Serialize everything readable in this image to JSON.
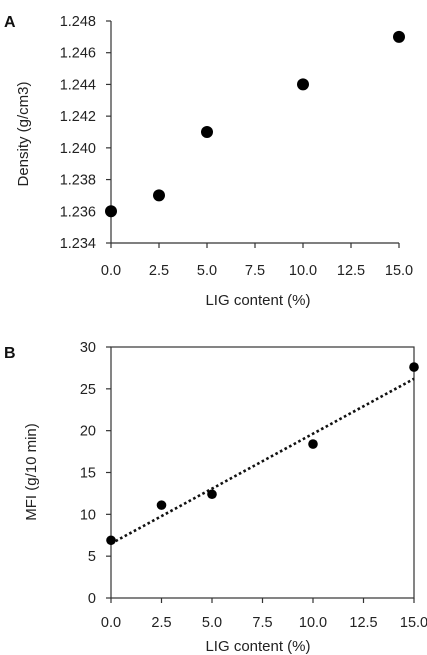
{
  "chart_data": [
    {
      "panel": "A",
      "type": "scatter",
      "xlabel": "LIG content (%)",
      "ylabel": "Density (g/cm3)",
      "xlim": [
        0,
        15
      ],
      "ylim": [
        1.234,
        1.248
      ],
      "xticks": [
        "0.0",
        "2.5",
        "5.0",
        "7.5",
        "10.0",
        "12.5",
        "15.0"
      ],
      "yticks": [
        "1.234",
        "1.236",
        "1.238",
        "1.240",
        "1.242",
        "1.244",
        "1.246",
        "1.248"
      ],
      "series": [
        {
          "x": [
            0,
            2.5,
            5,
            10,
            15
          ],
          "y": [
            1.236,
            1.237,
            1.241,
            1.244,
            1.247
          ]
        }
      ],
      "frame": false,
      "grid": false
    },
    {
      "panel": "B",
      "type": "scatter",
      "xlabel": "LIG content (%)",
      "ylabel": "MFI (g/10 min)",
      "xlim": [
        0,
        15
      ],
      "ylim": [
        0,
        30
      ],
      "xticks": [
        "0.0",
        "2.5",
        "5.0",
        "7.5",
        "10.0",
        "12.5",
        "15.0"
      ],
      "yticks": [
        "0",
        "5",
        "10",
        "15",
        "20",
        "25",
        "30"
      ],
      "series": [
        {
          "x": [
            0,
            2.5,
            5,
            10,
            15
          ],
          "y": [
            6.9,
            11.1,
            12.4,
            18.4,
            27.6
          ]
        }
      ],
      "trendline": {
        "type": "linear",
        "style": "dotted",
        "x": [
          0,
          15
        ],
        "y": [
          6.5,
          26.2
        ]
      },
      "frame": true,
      "grid": false
    }
  ]
}
